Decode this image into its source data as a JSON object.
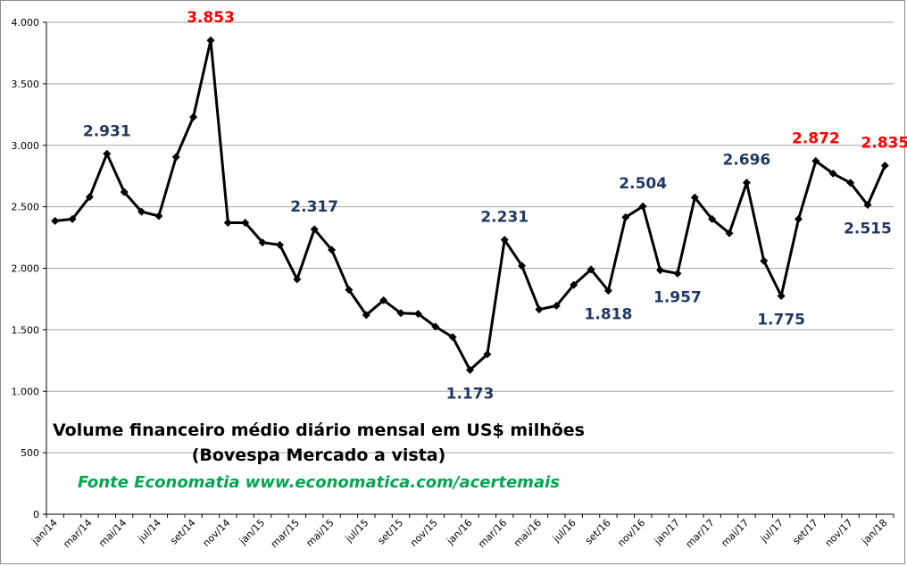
{
  "chart_data": {
    "type": "line",
    "title_lines": [
      "Volume financeiro médio diário mensal em US$ milhões",
      "(Bovespa Mercado a vista)"
    ],
    "source": "Fonte Economatia www.economatica.com/acertemais",
    "ylim": [
      0,
      4000
    ],
    "y_ticks": [
      {
        "value": 0,
        "label": "0"
      },
      {
        "value": 500,
        "label": "500"
      },
      {
        "value": 1000,
        "label": "1.000"
      },
      {
        "value": 1500,
        "label": "1.500"
      },
      {
        "value": 2000,
        "label": "2.000"
      },
      {
        "value": 2500,
        "label": "2.500"
      },
      {
        "value": 3000,
        "label": "3.000"
      },
      {
        "value": 3500,
        "label": "3.500"
      },
      {
        "value": 4000,
        "label": "4.000"
      }
    ],
    "x_tick_labels": [
      "jan/14",
      "mar/14",
      "mai/14",
      "jul/14",
      "set/14",
      "nov/14",
      "jan/15",
      "mar/15",
      "mai/15",
      "jul/15",
      "set/15",
      "nov/15",
      "jan/16",
      "mar/16",
      "mai/16",
      "jul/16",
      "set/16",
      "nov/16",
      "jan/17",
      "mar/17",
      "mai/17",
      "jul/17",
      "set/17",
      "nov/17",
      "jan/18"
    ],
    "grid": "horizontal",
    "legend": "none",
    "line_color": "#000000",
    "series": [
      {
        "values": [
          2385,
          2400,
          2580,
          2931,
          2620,
          2460,
          2425,
          2905,
          3230,
          3853,
          2370,
          2370,
          2210,
          2190,
          1910,
          2317,
          2150,
          1825,
          1620,
          1740,
          1635,
          1630,
          1525,
          1440,
          1173,
          1300,
          2231,
          2020,
          1665,
          1695,
          1865,
          1990,
          1818,
          2415,
          2504,
          1985,
          1957,
          2575,
          2400,
          2285,
          2696,
          2060,
          1775,
          2400,
          2872,
          2770,
          2695,
          2515,
          2835
        ]
      }
    ],
    "annotations": [
      {
        "index": 3,
        "label": "2.931",
        "color": "#1f3864",
        "position": "above"
      },
      {
        "index": 9,
        "label": "3.853",
        "color": "#ff0000",
        "position": "above"
      },
      {
        "index": 15,
        "label": "2.317",
        "color": "#1f3864",
        "position": "above"
      },
      {
        "index": 24,
        "label": "1.173",
        "color": "#1f3864",
        "position": "below"
      },
      {
        "index": 26,
        "label": "2.231",
        "color": "#1f3864",
        "position": "above"
      },
      {
        "index": 32,
        "label": "1.818",
        "color": "#1f3864",
        "position": "below"
      },
      {
        "index": 34,
        "label": "2.504",
        "color": "#1f3864",
        "position": "above"
      },
      {
        "index": 36,
        "label": "1.957",
        "color": "#1f3864",
        "position": "below"
      },
      {
        "index": 40,
        "label": "2.696",
        "color": "#1f3864",
        "position": "above"
      },
      {
        "index": 42,
        "label": "1.775",
        "color": "#1f3864",
        "position": "below"
      },
      {
        "index": 44,
        "label": "2.872",
        "color": "#ff0000",
        "position": "above"
      },
      {
        "index": 47,
        "label": "2.515",
        "color": "#1f3864",
        "position": "below"
      },
      {
        "index": 48,
        "label": "2.835",
        "color": "#ff0000",
        "position": "above"
      }
    ]
  }
}
